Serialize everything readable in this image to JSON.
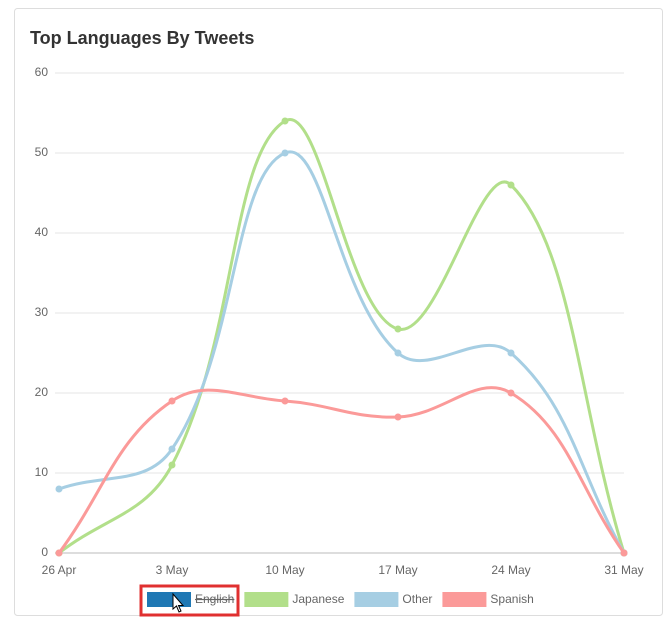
{
  "chart_data": {
    "type": "line",
    "title": "Top Languages By Tweets",
    "categories": [
      "26 Apr",
      "3 May",
      "10 May",
      "17 May",
      "24 May",
      "31 May"
    ],
    "series": [
      {
        "name": "English",
        "color": "#1f78b4",
        "hidden": true
      },
      {
        "name": "Japanese",
        "color": "#b2df8a",
        "values": [
          0,
          11,
          54,
          28,
          46,
          0
        ]
      },
      {
        "name": "Other",
        "color": "#a6cee3",
        "values": [
          8,
          13,
          50,
          25,
          25,
          0
        ]
      },
      {
        "name": "Spanish",
        "color": "#fb9a99",
        "values": [
          0,
          19,
          19,
          17,
          20,
          0
        ]
      }
    ],
    "ylim": [
      0,
      60
    ],
    "yticks": [
      0,
      10,
      20,
      30,
      40,
      50,
      60
    ],
    "grid": true
  }
}
